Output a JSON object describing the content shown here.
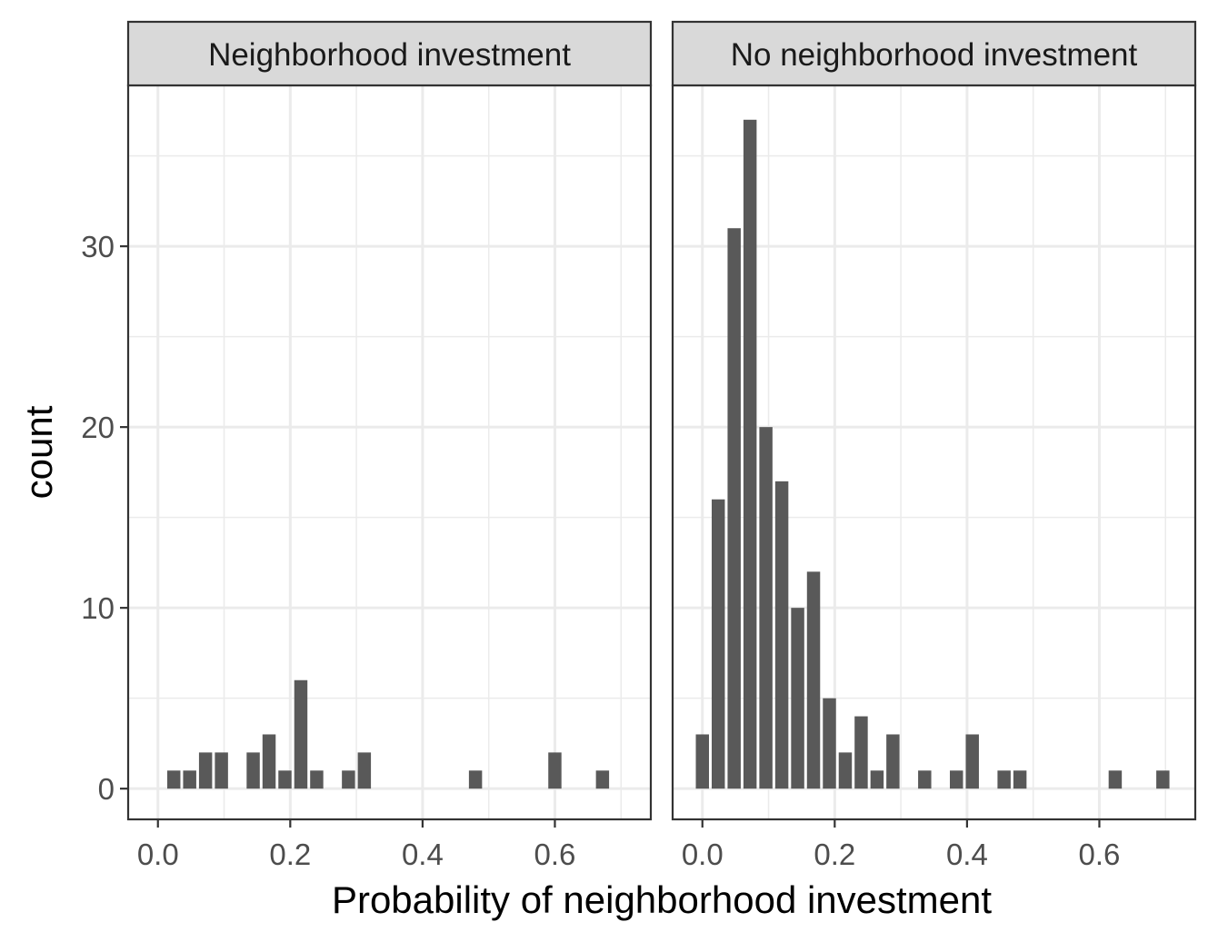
{
  "chart_data": {
    "type": "bar",
    "xlabel": "Probability of neighborhood investment",
    "ylabel": "count",
    "xlim": [
      -0.045,
      0.745
    ],
    "ylim": [
      -1.7,
      38.9
    ],
    "x_ticks": [
      0.0,
      0.2,
      0.4,
      0.6
    ],
    "x_tick_labels": [
      "0.0",
      "0.2",
      "0.4",
      "0.6"
    ],
    "y_ticks": [
      0,
      10,
      20,
      30
    ],
    "y_tick_labels": [
      "0",
      "10",
      "20",
      "30"
    ],
    "bin_width": 0.024,
    "grid": true,
    "panels": [
      {
        "label": "Neighborhood investment",
        "x": [
          0.0,
          0.024,
          0.048,
          0.072,
          0.096,
          0.12,
          0.144,
          0.168,
          0.192,
          0.216,
          0.24,
          0.264,
          0.288,
          0.312,
          0.336,
          0.36,
          0.384,
          0.408,
          0.432,
          0.456,
          0.48,
          0.504,
          0.528,
          0.552,
          0.576,
          0.6,
          0.624,
          0.648,
          0.672,
          0.696
        ],
        "values": [
          0,
          1,
          1,
          2,
          2,
          0,
          2,
          3,
          1,
          6,
          1,
          0,
          1,
          2,
          0,
          0,
          0,
          0,
          0,
          0,
          1,
          0,
          0,
          0,
          0,
          2,
          0,
          0,
          1,
          0
        ]
      },
      {
        "label": "No neighborhood investment",
        "x": [
          0.0,
          0.024,
          0.048,
          0.072,
          0.096,
          0.12,
          0.144,
          0.168,
          0.192,
          0.216,
          0.24,
          0.264,
          0.288,
          0.312,
          0.336,
          0.36,
          0.384,
          0.408,
          0.432,
          0.456,
          0.48,
          0.504,
          0.528,
          0.552,
          0.576,
          0.6,
          0.624,
          0.648,
          0.672,
          0.696
        ],
        "values": [
          3,
          16,
          31,
          37,
          20,
          17,
          10,
          12,
          5,
          2,
          4,
          1,
          3,
          0,
          1,
          0,
          1,
          3,
          0,
          1,
          1,
          0,
          0,
          0,
          0,
          0,
          1,
          0,
          0,
          1
        ]
      }
    ]
  }
}
